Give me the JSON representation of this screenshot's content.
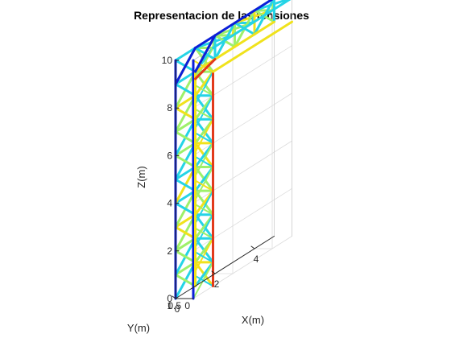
{
  "chart_data": {
    "type": "3d-truss",
    "title": "Representacion de las tensiones",
    "xlabel": "X(m)",
    "ylabel": "Y(m)",
    "zlabel": "Z(m)",
    "xlim": [
      0,
      5
    ],
    "ylim": [
      0,
      1
    ],
    "zlim": [
      0,
      10
    ],
    "x_ticks": [
      "0",
      "2",
      "4"
    ],
    "y_ticks": [
      "0",
      "0.5",
      "1"
    ],
    "z_ticks": [
      "0",
      "2",
      "4",
      "6",
      "8",
      "10"
    ],
    "grid": true,
    "colormap": "jet",
    "tower": {
      "x_range": [
        0,
        1
      ],
      "y_range": [
        0,
        1
      ],
      "z_range": [
        0,
        10
      ],
      "bays": 10
    },
    "arm": {
      "x_range": [
        1,
        5
      ],
      "y_range": [
        0,
        1
      ],
      "z_range": [
        9,
        10
      ],
      "bays": 4
    },
    "colors": {
      "compression": "#0b1fd8",
      "tension": "#e23a1c",
      "low": "#25d4e6",
      "mid": "#9ef06a",
      "high": "#f0e21c",
      "axis": "#262626",
      "grid": "#dcdcdc"
    }
  }
}
